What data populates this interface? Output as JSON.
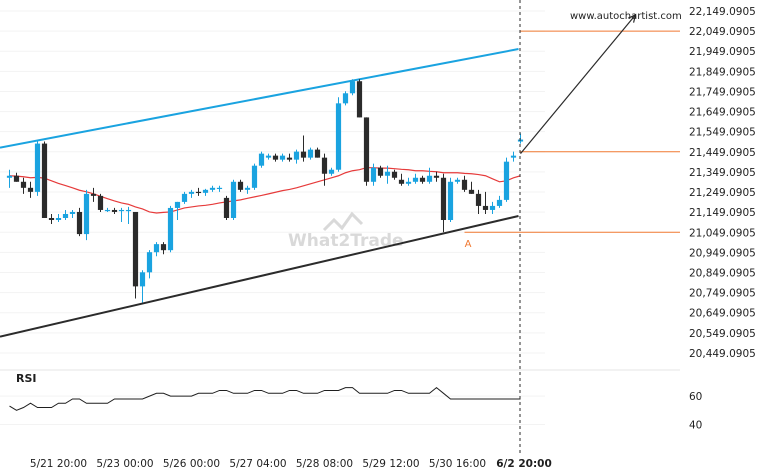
{
  "source_text": "www.autochartist.com",
  "watermark": "What2Trade",
  "chart_data": {
    "type": "candlestick",
    "xlabel": "",
    "ylabel": "",
    "ylim": [
      20399.0905,
      22149.0905
    ],
    "y_ticks": [
      "22,149.0905",
      "22,049.0905",
      "21,949.0905",
      "21,849.0905",
      "21,749.0905",
      "21,649.0905",
      "21,549.0905",
      "21,449.0905",
      "21,349.0905",
      "21,249.0905",
      "21,149.0905",
      "21,049.0905",
      "20,949.0905",
      "20,849.0905",
      "20,749.0905",
      "20,649.0905",
      "20,549.0905",
      "20,449.0905"
    ],
    "y_tick_values": [
      22149.0905,
      22049.0905,
      21949.0905,
      21849.0905,
      21749.0905,
      21649.0905,
      21549.0905,
      21449.0905,
      21349.0905,
      21249.0905,
      21149.0905,
      21049.0905,
      20949.0905,
      20849.0905,
      20749.0905,
      20649.0905,
      20549.0905,
      20449.0905
    ],
    "x_ticks": [
      "5/21 20:00",
      "5/23 00:00",
      "5/26 00:00",
      "5/27 04:00",
      "5/28 08:00",
      "5/29 12:00",
      "5/30 16:00",
      "6/2 20:00"
    ],
    "x_tick_bar_index": [
      7,
      16.5,
      26,
      35.5,
      45,
      54.5,
      64,
      73.5
    ],
    "candles": [
      {
        "o": 21320,
        "h": 21360,
        "l": 21270,
        "c": 21330
      },
      {
        "o": 21330,
        "h": 21345,
        "l": 21300,
        "c": 21300
      },
      {
        "o": 21300,
        "h": 21320,
        "l": 21240,
        "c": 21270
      },
      {
        "o": 21270,
        "h": 21300,
        "l": 21220,
        "c": 21250
      },
      {
        "o": 21250,
        "h": 21500,
        "l": 21230,
        "c": 21490
      },
      {
        "o": 21490,
        "h": 21500,
        "l": 21120,
        "c": 21120
      },
      {
        "o": 21120,
        "h": 21140,
        "l": 21090,
        "c": 21110
      },
      {
        "o": 21110,
        "h": 21140,
        "l": 21100,
        "c": 21120
      },
      {
        "o": 21120,
        "h": 21160,
        "l": 21110,
        "c": 21140
      },
      {
        "o": 21140,
        "h": 21160,
        "l": 21120,
        "c": 21150
      },
      {
        "o": 21150,
        "h": 21170,
        "l": 21030,
        "c": 21040
      },
      {
        "o": 21040,
        "h": 21260,
        "l": 21010,
        "c": 21240
      },
      {
        "o": 21240,
        "h": 21270,
        "l": 21200,
        "c": 21230
      },
      {
        "o": 21230,
        "h": 21240,
        "l": 21150,
        "c": 21160
      },
      {
        "o": 21160,
        "h": 21170,
        "l": 21150,
        "c": 21160
      },
      {
        "o": 21160,
        "h": 21170,
        "l": 21140,
        "c": 21150
      },
      {
        "o": 21160,
        "h": 21170,
        "l": 21100,
        "c": 21160
      },
      {
        "o": 21160,
        "h": 21175,
        "l": 21090,
        "c": 21160
      },
      {
        "o": 21150,
        "h": 21150,
        "l": 20720,
        "c": 20780
      },
      {
        "o": 20780,
        "h": 20860,
        "l": 20700,
        "c": 20850
      },
      {
        "o": 20850,
        "h": 20960,
        "l": 20820,
        "c": 20950
      },
      {
        "o": 20950,
        "h": 21000,
        "l": 20930,
        "c": 20990
      },
      {
        "o": 20990,
        "h": 21000,
        "l": 20940,
        "c": 20960
      },
      {
        "o": 20960,
        "h": 21180,
        "l": 20950,
        "c": 21170
      },
      {
        "o": 21170,
        "h": 21200,
        "l": 21110,
        "c": 21200
      },
      {
        "o": 21200,
        "h": 21250,
        "l": 21190,
        "c": 21240
      },
      {
        "o": 21240,
        "h": 21260,
        "l": 21220,
        "c": 21250
      },
      {
        "o": 21250,
        "h": 21270,
        "l": 21230,
        "c": 21245
      },
      {
        "o": 21245,
        "h": 21265,
        "l": 21230,
        "c": 21260
      },
      {
        "o": 21260,
        "h": 21280,
        "l": 21250,
        "c": 21270
      },
      {
        "o": 21270,
        "h": 21280,
        "l": 21250,
        "c": 21270
      },
      {
        "o": 21220,
        "h": 21230,
        "l": 21110,
        "c": 21120
      },
      {
        "o": 21120,
        "h": 21310,
        "l": 21110,
        "c": 21300
      },
      {
        "o": 21300,
        "h": 21310,
        "l": 21250,
        "c": 21260
      },
      {
        "o": 21260,
        "h": 21280,
        "l": 21240,
        "c": 21270
      },
      {
        "o": 21270,
        "h": 21390,
        "l": 21260,
        "c": 21380
      },
      {
        "o": 21380,
        "h": 21450,
        "l": 21370,
        "c": 21440
      },
      {
        "o": 21420,
        "h": 21440,
        "l": 21410,
        "c": 21430
      },
      {
        "o": 21430,
        "h": 21440,
        "l": 21400,
        "c": 21410
      },
      {
        "o": 21410,
        "h": 21440,
        "l": 21400,
        "c": 21430
      },
      {
        "o": 21420,
        "h": 21440,
        "l": 21400,
        "c": 21410
      },
      {
        "o": 21410,
        "h": 21460,
        "l": 21390,
        "c": 21450
      },
      {
        "o": 21450,
        "h": 21530,
        "l": 21400,
        "c": 21420
      },
      {
        "o": 21420,
        "h": 21470,
        "l": 21410,
        "c": 21460
      },
      {
        "o": 21460,
        "h": 21470,
        "l": 21420,
        "c": 21420
      },
      {
        "o": 21420,
        "h": 21440,
        "l": 21280,
        "c": 21340
      },
      {
        "o": 21340,
        "h": 21370,
        "l": 21330,
        "c": 21360
      },
      {
        "o": 21360,
        "h": 21720,
        "l": 21350,
        "c": 21690
      },
      {
        "o": 21690,
        "h": 21750,
        "l": 21680,
        "c": 21740
      },
      {
        "o": 21740,
        "h": 21810,
        "l": 21730,
        "c": 21800
      },
      {
        "o": 21800,
        "h": 21810,
        "l": 21620,
        "c": 21620
      },
      {
        "o": 21620,
        "h": 21620,
        "l": 21280,
        "c": 21300
      },
      {
        "o": 21300,
        "h": 21390,
        "l": 21280,
        "c": 21370
      },
      {
        "o": 21370,
        "h": 21380,
        "l": 21320,
        "c": 21330
      },
      {
        "o": 21330,
        "h": 21380,
        "l": 21290,
        "c": 21350
      },
      {
        "o": 21350,
        "h": 21360,
        "l": 21310,
        "c": 21320
      },
      {
        "o": 21310,
        "h": 21340,
        "l": 21280,
        "c": 21290
      },
      {
        "o": 21290,
        "h": 21320,
        "l": 21280,
        "c": 21300
      },
      {
        "o": 21300,
        "h": 21340,
        "l": 21290,
        "c": 21320
      },
      {
        "o": 21320,
        "h": 21330,
        "l": 21290,
        "c": 21300
      },
      {
        "o": 21300,
        "h": 21370,
        "l": 21290,
        "c": 21330
      },
      {
        "o": 21330,
        "h": 21350,
        "l": 21300,
        "c": 21320
      },
      {
        "o": 21320,
        "h": 21340,
        "l": 21050,
        "c": 21110
      },
      {
        "o": 21110,
        "h": 21320,
        "l": 21100,
        "c": 21300
      },
      {
        "o": 21300,
        "h": 21320,
        "l": 21290,
        "c": 21310
      },
      {
        "o": 21310,
        "h": 21330,
        "l": 21250,
        "c": 21260
      },
      {
        "o": 21260,
        "h": 21300,
        "l": 21240,
        "c": 21240
      },
      {
        "o": 21240,
        "h": 21260,
        "l": 21140,
        "c": 21180
      },
      {
        "o": 21180,
        "h": 21250,
        "l": 21140,
        "c": 21160
      },
      {
        "o": 21160,
        "h": 21200,
        "l": 21140,
        "c": 21180
      },
      {
        "o": 21180,
        "h": 21230,
        "l": 21170,
        "c": 21210
      },
      {
        "o": 21210,
        "h": 21420,
        "l": 21200,
        "c": 21400
      },
      {
        "o": 21420,
        "h": 21450,
        "l": 21400,
        "c": 21430
      },
      {
        "o": 21500,
        "h": 21540,
        "l": 21490,
        "c": 21510
      }
    ],
    "moving_average": [
      21330,
      21328,
      21325,
      21320,
      21322,
      21318,
      21305,
      21292,
      21281,
      21270,
      21258,
      21250,
      21240,
      21228,
      21216,
      21205,
      21195,
      21188,
      21175,
      21165,
      21150,
      21145,
      21148,
      21150,
      21160,
      21170,
      21175,
      21180,
      21183,
      21188,
      21195,
      21200,
      21205,
      21210,
      21218,
      21225,
      21232,
      21240,
      21248,
      21256,
      21262,
      21270,
      21280,
      21290,
      21300,
      21310,
      21320,
      21330,
      21345,
      21355,
      21360,
      21370,
      21370,
      21368,
      21368,
      21365,
      21362,
      21360,
      21355,
      21355,
      21352,
      21350,
      21345,
      21345,
      21345,
      21342,
      21340,
      21336,
      21330,
      21315,
      21300,
      21305,
      21320,
      21330
    ],
    "resistance_line": {
      "from": {
        "bar": 0,
        "value": 21470
      },
      "to": {
        "bar": 73,
        "value": 21960
      }
    },
    "support_line": {
      "from": {
        "bar": 0,
        "value": 20530
      },
      "to": {
        "bar": 73,
        "value": 21130
      }
    },
    "level_lines": [
      {
        "value": 22049.0905,
        "from_bar": 73
      },
      {
        "value": 21449.0905,
        "from_bar": 73
      },
      {
        "value": 21049.0905,
        "from_bar": 65
      }
    ],
    "forecast_arrow": {
      "from": {
        "bar": 73,
        "value": 21440
      },
      "to": {
        "bar": 90,
        "value": 22130
      }
    },
    "annotation": {
      "text": "A",
      "bar": 65.5,
      "value": 21025
    },
    "current_bar": 73.5,
    "rsi": {
      "label": "RSI",
      "y_ticks": [
        "60",
        "40"
      ],
      "y_tick_values": [
        60,
        40
      ],
      "ylim": [
        27,
        77
      ],
      "values": [
        53,
        50,
        52,
        55,
        52,
        52,
        52,
        55,
        55,
        58,
        58,
        55,
        55,
        55,
        55,
        58,
        58,
        58,
        58,
        58,
        60,
        62,
        62,
        60,
        60,
        60,
        60,
        62,
        62,
        62,
        64,
        64,
        62,
        62,
        62,
        64,
        64,
        62,
        62,
        62,
        64,
        64,
        62,
        62,
        62,
        64,
        64,
        64,
        66,
        66,
        62,
        62,
        62,
        62,
        62,
        64,
        64,
        62,
        62,
        62,
        62,
        66,
        62,
        58,
        58,
        58,
        58,
        58,
        58,
        58,
        58,
        58,
        58,
        58
      ]
    }
  }
}
